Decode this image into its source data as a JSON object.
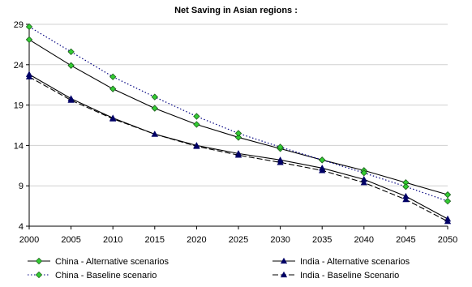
{
  "chart_data": {
    "type": "line",
    "title": "Net Saving in Asian regions :",
    "xlabel": "",
    "ylabel": "",
    "x": [
      2000,
      2005,
      2010,
      2015,
      2020,
      2025,
      2030,
      2035,
      2040,
      2045,
      2050
    ],
    "xlim": [
      2000,
      2050
    ],
    "ylim": [
      4,
      29
    ],
    "yticks": [
      4,
      9,
      14,
      19,
      24,
      29
    ],
    "grid": "horizontal",
    "legend_position": "bottom",
    "series": [
      {
        "name": "China -  Alternative scenarios",
        "color": "#000000",
        "marker_color": "#33cc33",
        "marker": "diamond",
        "line": "solid",
        "values": [
          27.1,
          23.9,
          21.0,
          18.6,
          16.6,
          15.0,
          13.6,
          12.2,
          10.9,
          9.4,
          7.9
        ]
      },
      {
        "name": "China - Baseline scenario",
        "color": "#000080",
        "marker_color": "#33cc33",
        "marker": "diamond",
        "line": "dotted",
        "values": [
          28.7,
          25.6,
          22.5,
          20.0,
          17.6,
          15.5,
          13.8,
          12.2,
          10.6,
          8.9,
          7.1
        ]
      },
      {
        "name": "India -  Alternative scenarios",
        "color": "#000000",
        "marker_color": "#000066",
        "marker": "triangle",
        "line": "solid",
        "values": [
          22.8,
          19.8,
          17.4,
          15.4,
          14.0,
          13.0,
          12.2,
          11.2,
          9.8,
          7.7,
          4.9
        ]
      },
      {
        "name": "India - Baseline Scenario",
        "color": "#000000",
        "marker_color": "#000066",
        "marker": "triangle",
        "line": "dashed",
        "values": [
          22.5,
          19.6,
          17.3,
          15.4,
          13.9,
          12.8,
          11.9,
          10.9,
          9.4,
          7.3,
          4.6
        ]
      }
    ]
  }
}
